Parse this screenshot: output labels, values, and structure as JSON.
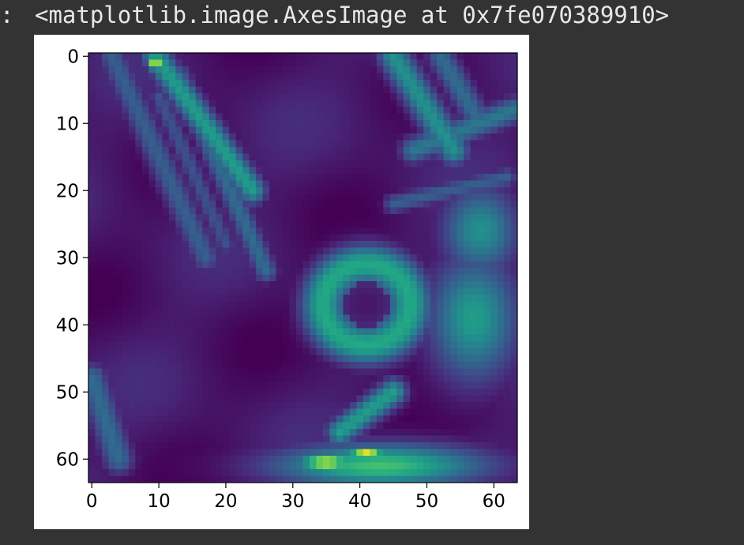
{
  "cell": {
    "gutter_mark": ":",
    "output_text": "<matplotlib.image.AxesImage at 0x7fe070389910>"
  },
  "colors": {
    "page_background": "#333333",
    "figure_background": "#ffffff",
    "output_text": "#e8e8e8",
    "colormap": "viridis"
  },
  "chart_data": {
    "type": "heatmap",
    "colormap": "viridis",
    "shape": [
      64,
      64
    ],
    "xlim": [
      -0.5,
      63.5
    ],
    "ylim": [
      63.5,
      -0.5
    ],
    "x_ticks": [
      0,
      10,
      20,
      30,
      40,
      50,
      60
    ],
    "y_ticks": [
      0,
      10,
      20,
      30,
      40,
      50,
      60
    ],
    "x_tick_labels": [
      "0",
      "10",
      "20",
      "30",
      "40",
      "50",
      "60"
    ],
    "y_tick_labels": [
      "0",
      "10",
      "20",
      "30",
      "40",
      "50",
      "60"
    ],
    "title": "",
    "xlabel": "",
    "ylabel": "",
    "value_range": [
      0,
      1
    ],
    "background_level": 0.06,
    "features": [
      {
        "kind": "ridge",
        "from": [
          9.5,
          0
        ],
        "to": [
          24,
          20
        ],
        "width": 1.4,
        "level": 0.55
      },
      {
        "kind": "ridge",
        "from": [
          13,
          3
        ],
        "to": [
          26,
          32
        ],
        "width": 1.2,
        "level": 0.35
      },
      {
        "kind": "ridge",
        "from": [
          3,
          0
        ],
        "to": [
          17,
          30
        ],
        "width": 1.4,
        "level": 0.3
      },
      {
        "kind": "ridge",
        "from": [
          10,
          6
        ],
        "to": [
          20,
          28
        ],
        "width": 1.0,
        "level": 0.25
      },
      {
        "kind": "ridge",
        "from": [
          0,
          48
        ],
        "to": [
          4,
          60
        ],
        "width": 1.6,
        "level": 0.35
      },
      {
        "kind": "ridge",
        "from": [
          45,
          0
        ],
        "to": [
          54,
          14
        ],
        "width": 1.6,
        "level": 0.5
      },
      {
        "kind": "ridge",
        "from": [
          52,
          0
        ],
        "to": [
          58,
          10
        ],
        "width": 1.4,
        "level": 0.35
      },
      {
        "kind": "ridge",
        "from": [
          48,
          14
        ],
        "to": [
          63,
          8
        ],
        "width": 1.4,
        "level": 0.4
      },
      {
        "kind": "ridge",
        "from": [
          45,
          22
        ],
        "to": [
          62,
          18
        ],
        "width": 1.0,
        "level": 0.3
      },
      {
        "kind": "ridge",
        "from": [
          45,
          50
        ],
        "to": [
          37,
          56
        ],
        "width": 1.4,
        "level": 0.55
      },
      {
        "kind": "blob",
        "center": [
          57,
          39
        ],
        "radius": [
          7,
          10
        ],
        "level": 0.55
      },
      {
        "kind": "blob",
        "center": [
          58,
          26
        ],
        "radius": [
          6,
          7
        ],
        "level": 0.5
      },
      {
        "kind": "blob",
        "center": [
          43,
          61
        ],
        "radius": [
          17,
          3.5
        ],
        "level": 0.7
      },
      {
        "kind": "ring",
        "center": [
          41,
          37
        ],
        "radius": [
          6.5,
          6
        ],
        "width": 2.2,
        "level": 0.6
      },
      {
        "kind": "hole",
        "center": [
          41,
          37
        ],
        "radius": [
          3.4,
          3.2
        ],
        "level": 0.06
      },
      {
        "kind": "hotspot",
        "center": [
          9.5,
          1
        ],
        "radius": [
          1.2,
          1.2
        ],
        "level": 1.0
      },
      {
        "kind": "hotspot",
        "center": [
          35,
          60.5
        ],
        "radius": [
          4.5,
          1.2
        ],
        "level": 1.0
      },
      {
        "kind": "hotspot",
        "center": [
          41,
          59
        ],
        "radius": [
          3,
          1
        ],
        "level": 0.95
      }
    ]
  }
}
